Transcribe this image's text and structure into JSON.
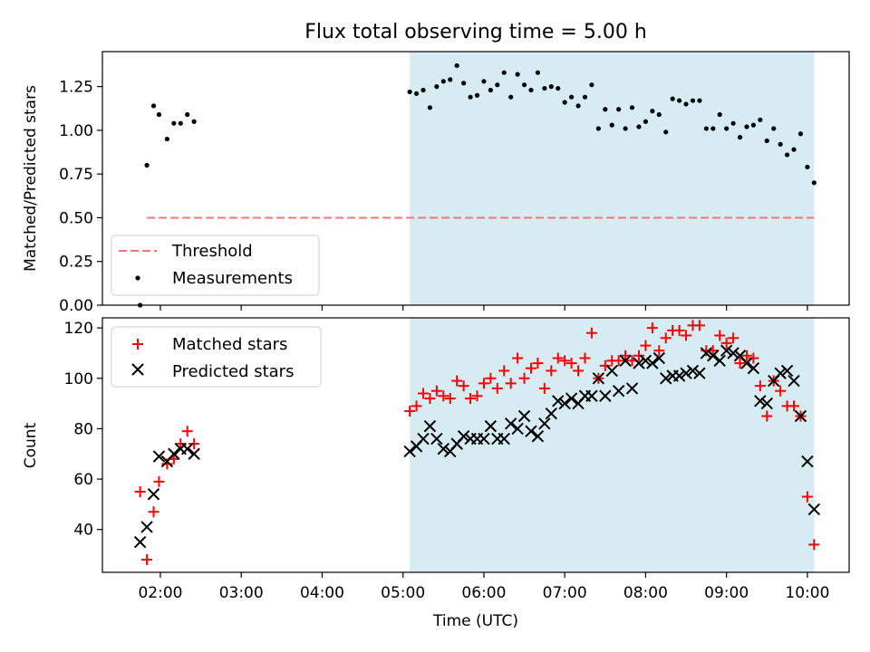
{
  "figure": {
    "title": "Flux total observing time = 5.00 h",
    "xlabel": "Time (UTC)"
  },
  "colors": {
    "shade": "#add8e6",
    "threshold": "#ff7373",
    "measurements": "#000000",
    "matched": "#ff0000",
    "predicted": "#000000"
  },
  "chart_data": [
    {
      "type": "scatter",
      "ylabel": "Matched/Predicted stars",
      "xlim": [
        "01:17",
        "10:31"
      ],
      "ylim": [
        0,
        1.45
      ],
      "yticks": [
        0.0,
        0.25,
        0.5,
        0.75,
        1.0,
        1.25
      ],
      "ytick_labels": [
        "0.00",
        "0.25",
        "0.50",
        "0.75",
        "1.00",
        "1.25"
      ],
      "xticks": [
        "02:00",
        "03:00",
        "04:00",
        "05:00",
        "06:00",
        "07:00",
        "08:00",
        "09:00",
        "10:00"
      ],
      "grid": false,
      "legend_position": "lower-left",
      "shaded_interval": [
        "05:05",
        "10:05"
      ],
      "threshold": {
        "name": "Threshold",
        "value": 0.5,
        "x_range": [
          "01:50",
          "10:05"
        ],
        "style": "dashed"
      },
      "series": [
        {
          "name": "Measurements",
          "marker": "dot",
          "x": [
            "01:45",
            "01:50",
            "01:55",
            "01:59",
            "02:05",
            "02:10",
            "02:15",
            "02:20",
            "02:25",
            "05:05",
            "05:10",
            "05:15",
            "05:20",
            "05:25",
            "05:30",
            "05:35",
            "05:40",
            "05:45",
            "05:50",
            "05:55",
            "06:00",
            "06:05",
            "06:10",
            "06:15",
            "06:20",
            "06:25",
            "06:30",
            "06:35",
            "06:40",
            "06:45",
            "06:50",
            "06:55",
            "07:00",
            "07:05",
            "07:10",
            "07:15",
            "07:20",
            "07:25",
            "07:30",
            "07:35",
            "07:40",
            "07:45",
            "07:50",
            "07:55",
            "08:00",
            "08:05",
            "08:10",
            "08:15",
            "08:20",
            "08:25",
            "08:30",
            "08:35",
            "08:40",
            "08:45",
            "08:50",
            "08:55",
            "09:00",
            "09:05",
            "09:10",
            "09:15",
            "09:20",
            "09:25",
            "09:30",
            "09:35",
            "09:40",
            "09:45",
            "09:50",
            "09:55",
            "10:00",
            "10:05"
          ],
          "y": [
            0.0,
            0.8,
            1.14,
            1.09,
            0.95,
            1.04,
            1.04,
            1.09,
            1.05,
            1.22,
            1.21,
            1.23,
            1.13,
            1.25,
            1.28,
            1.29,
            1.37,
            1.27,
            1.19,
            1.2,
            1.28,
            1.23,
            1.26,
            1.33,
            1.19,
            1.32,
            1.26,
            1.23,
            1.33,
            1.24,
            1.25,
            1.24,
            1.16,
            1.19,
            1.14,
            1.19,
            1.26,
            1.01,
            1.12,
            1.03,
            1.12,
            1.01,
            1.13,
            1.02,
            1.05,
            1.11,
            1.09,
            0.99,
            1.18,
            1.17,
            1.15,
            1.17,
            1.17,
            1.01,
            1.01,
            1.09,
            1.01,
            1.04,
            0.96,
            1.02,
            1.03,
            1.06,
            0.94,
            1.01,
            0.92,
            0.86,
            0.89,
            0.98,
            0.79,
            0.7
          ]
        }
      ]
    },
    {
      "type": "scatter",
      "ylabel": "Count",
      "xlabel": "Time (UTC)",
      "xlim": [
        "01:17",
        "10:31"
      ],
      "ylim": [
        23,
        124
      ],
      "yticks": [
        40,
        60,
        80,
        100,
        120
      ],
      "ytick_labels": [
        "40",
        "60",
        "80",
        "100",
        "120"
      ],
      "xticks": [
        "02:00",
        "03:00",
        "04:00",
        "05:00",
        "06:00",
        "07:00",
        "08:00",
        "09:00",
        "10:00"
      ],
      "xtick_labels": [
        "02:00",
        "03:00",
        "04:00",
        "05:00",
        "06:00",
        "07:00",
        "08:00",
        "09:00",
        "10:00"
      ],
      "grid": false,
      "legend_position": "upper-left",
      "shaded_interval": [
        "05:05",
        "10:05"
      ],
      "series": [
        {
          "name": "Matched stars",
          "marker": "plus",
          "x": [
            "01:45",
            "01:50",
            "01:55",
            "01:59",
            "02:05",
            "02:10",
            "02:15",
            "02:20",
            "02:25",
            "05:05",
            "05:10",
            "05:15",
            "05:20",
            "05:25",
            "05:30",
            "05:35",
            "05:40",
            "05:45",
            "05:50",
            "05:55",
            "06:00",
            "06:05",
            "06:10",
            "06:15",
            "06:20",
            "06:25",
            "06:30",
            "06:35",
            "06:40",
            "06:45",
            "06:50",
            "06:55",
            "07:00",
            "07:05",
            "07:10",
            "07:15",
            "07:20",
            "07:25",
            "07:30",
            "07:35",
            "07:40",
            "07:45",
            "07:50",
            "07:55",
            "08:00",
            "08:05",
            "08:10",
            "08:15",
            "08:20",
            "08:25",
            "08:30",
            "08:35",
            "08:40",
            "08:45",
            "08:50",
            "08:55",
            "09:00",
            "09:05",
            "09:10",
            "09:15",
            "09:20",
            "09:25",
            "09:30",
            "09:35",
            "09:40",
            "09:45",
            "09:50",
            "09:55",
            "10:00",
            "10:05"
          ],
          "y": [
            55,
            28,
            47,
            59,
            66,
            68,
            74,
            79,
            74,
            87,
            89,
            94,
            92,
            95,
            93,
            92,
            99,
            97,
            92,
            93,
            98,
            100,
            96,
            103,
            98,
            108,
            100,
            104,
            106,
            96,
            103,
            108,
            107,
            106,
            103,
            108,
            118,
            100,
            105,
            107,
            107,
            109,
            107,
            109,
            113,
            120,
            111,
            116,
            119,
            119,
            117,
            121,
            121,
            111,
            111,
            117,
            114,
            116,
            106,
            109,
            108,
            97,
            85,
            99,
            95,
            89,
            89,
            85,
            53,
            34
          ]
        },
        {
          "name": "Predicted stars",
          "marker": "x",
          "x": [
            "01:45",
            "01:50",
            "01:55",
            "01:59",
            "02:05",
            "02:10",
            "02:15",
            "02:20",
            "02:25",
            "05:05",
            "05:10",
            "05:15",
            "05:20",
            "05:25",
            "05:30",
            "05:35",
            "05:40",
            "05:45",
            "05:50",
            "05:55",
            "06:00",
            "06:05",
            "06:10",
            "06:15",
            "06:20",
            "06:25",
            "06:30",
            "06:35",
            "06:40",
            "06:45",
            "06:50",
            "06:55",
            "07:00",
            "07:05",
            "07:10",
            "07:15",
            "07:20",
            "07:25",
            "07:30",
            "07:35",
            "07:40",
            "07:45",
            "07:50",
            "07:55",
            "08:00",
            "08:05",
            "08:10",
            "08:15",
            "08:20",
            "08:25",
            "08:30",
            "08:35",
            "08:40",
            "08:45",
            "08:50",
            "08:55",
            "09:00",
            "09:05",
            "09:10",
            "09:15",
            "09:20",
            "09:25",
            "09:30",
            "09:35",
            "09:40",
            "09:45",
            "09:50",
            "09:55",
            "10:00",
            "10:05"
          ],
          "y": [
            35,
            41,
            54,
            69,
            67,
            70,
            72,
            72,
            70,
            71,
            73,
            76,
            81,
            76,
            72,
            71,
            74,
            77,
            76,
            76,
            76,
            81,
            76,
            76,
            82,
            80,
            85,
            79,
            77,
            82,
            86,
            91,
            90,
            92,
            90,
            93,
            93,
            100,
            93,
            103,
            95,
            107,
            96,
            106,
            107,
            106,
            108,
            100,
            101,
            101,
            102,
            103,
            102,
            110,
            109,
            107,
            111,
            110,
            109,
            106,
            104,
            91,
            90,
            99,
            102,
            103,
            99,
            85,
            67,
            48
          ]
        }
      ]
    }
  ]
}
